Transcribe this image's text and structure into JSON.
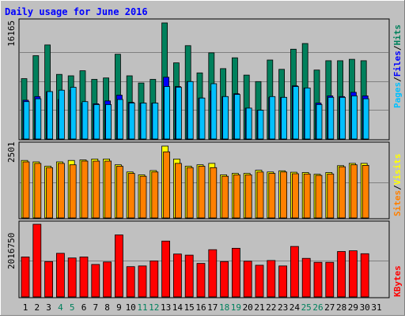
{
  "chart_data": [
    {
      "type": "bar",
      "title": "Daily usage for June 2016",
      "y_tick_label": "16165",
      "ymax": 16165,
      "right_legend": [
        "Pages",
        "Files",
        "Hits"
      ],
      "legend_order_bottom_to_top": [
        "Pages",
        "/",
        "Files",
        "/",
        "Hits"
      ],
      "categories": [
        "1",
        "2",
        "3",
        "4",
        "5",
        "6",
        "7",
        "8",
        "9",
        "10",
        "11",
        "12",
        "13",
        "14",
        "15",
        "16",
        "17",
        "18",
        "19",
        "20",
        "21",
        "22",
        "23",
        "24",
        "25",
        "26",
        "27",
        "28",
        "29",
        "30",
        "31"
      ],
      "weekend_days": [
        "4",
        "5",
        "11",
        "12",
        "18",
        "19",
        "25",
        "26"
      ],
      "series": [
        {
          "name": "Hits",
          "values": [
            8400,
            11600,
            13100,
            9000,
            8800,
            9500,
            8300,
            8500,
            11800,
            8800,
            7800,
            8300,
            16165,
            10600,
            13000,
            9200,
            12000,
            9800,
            11300,
            8900,
            8000,
            11000,
            9700,
            12500,
            13300,
            9600,
            10900,
            10900,
            11100,
            10900,
            0
          ]
        },
        {
          "name": "Files",
          "values": [
            5400,
            5900,
            6600,
            5500,
            6800,
            5000,
            4900,
            5300,
            6100,
            5100,
            5000,
            5000,
            8600,
            7300,
            8000,
            5700,
            6700,
            5900,
            6300,
            4300,
            4000,
            5800,
            5800,
            7400,
            7100,
            5000,
            6000,
            5900,
            6500,
            6000,
            0
          ]
        },
        {
          "name": "Pages",
          "values": [
            5200,
            5600,
            6600,
            6800,
            7200,
            5200,
            4800,
            4800,
            5500,
            5000,
            5000,
            5000,
            7300,
            7200,
            8000,
            5700,
            7700,
            5900,
            6200,
            4300,
            4000,
            5900,
            5800,
            7300,
            7100,
            4800,
            5800,
            5800,
            6000,
            5600,
            0
          ]
        }
      ]
    },
    {
      "type": "bar",
      "y_tick_label": "2501",
      "ymax": 2501,
      "right_legend": [
        "Sites",
        "Visits"
      ],
      "categories": [
        "1",
        "2",
        "3",
        "4",
        "5",
        "6",
        "7",
        "8",
        "9",
        "10",
        "11",
        "12",
        "13",
        "14",
        "15",
        "16",
        "17",
        "18",
        "19",
        "20",
        "21",
        "22",
        "23",
        "24",
        "25",
        "26",
        "27",
        "28",
        "29",
        "30",
        "31"
      ],
      "series": [
        {
          "name": "Visits",
          "values": [
            2000,
            1950,
            1800,
            1950,
            2000,
            2020,
            2050,
            2050,
            1850,
            1600,
            1500,
            1650,
            2501,
            2050,
            1800,
            1850,
            1900,
            1500,
            1550,
            1550,
            1660,
            1600,
            1640,
            1590,
            1580,
            1520,
            1580,
            1820,
            1900,
            1900,
            0
          ]
        },
        {
          "name": "Sites",
          "values": [
            1950,
            1900,
            1750,
            1900,
            1850,
            1980,
            1980,
            1980,
            1800,
            1550,
            1450,
            1600,
            2300,
            1900,
            1750,
            1800,
            1750,
            1450,
            1500,
            1500,
            1600,
            1550,
            1600,
            1540,
            1530,
            1480,
            1530,
            1780,
            1850,
            1830,
            0
          ]
        }
      ]
    },
    {
      "type": "bar",
      "y_tick_label": "2016750",
      "ymax": 2016750,
      "right_legend": [
        "KBytes"
      ],
      "categories": [
        "1",
        "2",
        "3",
        "4",
        "5",
        "6",
        "7",
        "8",
        "9",
        "10",
        "11",
        "12",
        "13",
        "14",
        "15",
        "16",
        "17",
        "18",
        "19",
        "20",
        "21",
        "22",
        "23",
        "24",
        "25",
        "26",
        "27",
        "28",
        "29",
        "30",
        "31"
      ],
      "series": [
        {
          "name": "KBytes",
          "values": [
            1110000,
            2016750,
            980000,
            1210000,
            1080000,
            1110000,
            900000,
            970000,
            1720000,
            840000,
            860000,
            1000000,
            1550000,
            1190000,
            1160000,
            930000,
            1310000,
            980000,
            1350000,
            990000,
            880000,
            1010000,
            860000,
            1400000,
            1070000,
            960000,
            960000,
            1260000,
            1280000,
            1200000,
            0
          ]
        }
      ]
    }
  ],
  "colors": {
    "background": "#C0C0C0",
    "title": "#0000FF",
    "hits": "#00805C",
    "files": "#0000FF",
    "pages": "#00C0FF",
    "visits": "#FFFF00",
    "sites": "#FF8000",
    "kbytes": "#FF0000",
    "weekend_label": "#00805C",
    "weekday_label": "#000000"
  }
}
